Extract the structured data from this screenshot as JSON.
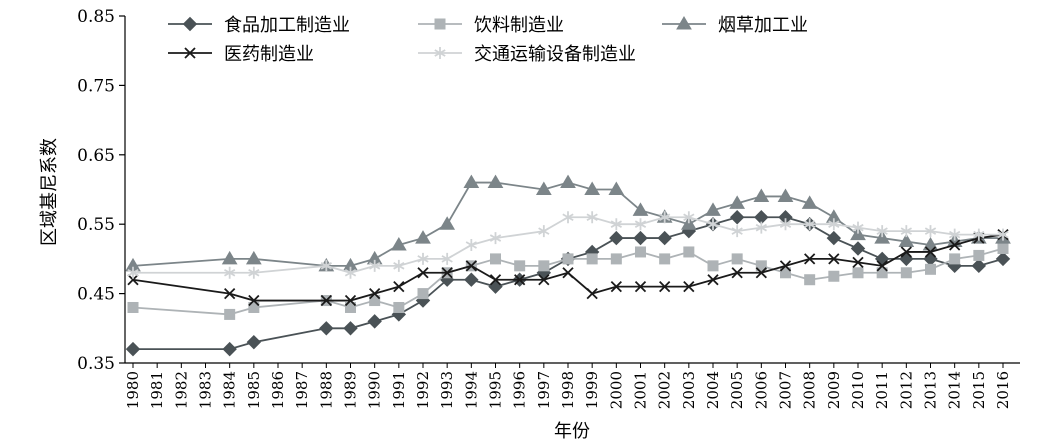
{
  "chart_data": {
    "type": "line",
    "xlabel": "年份",
    "ylabel": "区域基尼系数",
    "ylim": [
      0.35,
      0.85
    ],
    "yticks": [
      0.35,
      0.45,
      0.55,
      0.65,
      0.75,
      0.85
    ],
    "ytick_labels": [
      "0.35",
      "0.45",
      "0.55",
      "0.65",
      "0.75",
      "0.85"
    ],
    "legend_position": "top",
    "grid": false,
    "categories": [
      "1980",
      "1981",
      "1982",
      "1983",
      "1984",
      "1985",
      "1986",
      "1987",
      "1988",
      "1989",
      "1990",
      "1991",
      "1992",
      "1993",
      "1994",
      "1995",
      "1996",
      "1997",
      "1998",
      "1999",
      "2000",
      "2001",
      "2002",
      "2003",
      "2004",
      "2005",
      "2006",
      "2007",
      "2008",
      "2009",
      "2010",
      "2011",
      "2012",
      "2013",
      "2014",
      "2015",
      "2016"
    ],
    "series": [
      {
        "name": "食品加工制造业",
        "marker": "diamond",
        "color": "#4a5256",
        "values": [
          0.37,
          null,
          null,
          null,
          0.37,
          0.38,
          null,
          null,
          0.4,
          0.4,
          0.41,
          0.42,
          0.44,
          0.47,
          0.47,
          0.46,
          0.47,
          0.48,
          0.5,
          0.51,
          0.53,
          0.53,
          0.53,
          0.54,
          0.55,
          0.56,
          0.56,
          0.56,
          0.55,
          0.53,
          0.515,
          0.5,
          0.5,
          0.5,
          0.49,
          0.49,
          0.5
        ]
      },
      {
        "name": "饮料制造业",
        "marker": "square",
        "color": "#aeb3b6",
        "values": [
          0.43,
          null,
          null,
          null,
          0.42,
          0.43,
          null,
          null,
          0.44,
          0.43,
          0.44,
          0.43,
          0.45,
          0.48,
          0.49,
          0.5,
          0.49,
          0.49,
          0.5,
          0.5,
          0.5,
          0.51,
          0.5,
          0.51,
          0.49,
          0.5,
          0.49,
          0.48,
          0.47,
          0.475,
          0.48,
          0.48,
          0.48,
          0.485,
          0.5,
          0.505,
          0.515
        ]
      },
      {
        "name": "烟草加工业",
        "marker": "triangle",
        "color": "#7c8589",
        "values": [
          0.49,
          null,
          null,
          null,
          0.5,
          0.5,
          null,
          null,
          0.49,
          0.49,
          0.5,
          0.52,
          0.53,
          0.55,
          0.61,
          0.61,
          null,
          0.6,
          0.61,
          0.6,
          0.6,
          0.57,
          0.56,
          0.55,
          0.57,
          0.58,
          0.59,
          0.59,
          0.58,
          0.56,
          0.535,
          0.53,
          0.525,
          0.52,
          0.525,
          0.53,
          0.53
        ]
      },
      {
        "name": "医药制造业",
        "marker": "x",
        "color": "#1a1a1a",
        "values": [
          0.47,
          null,
          null,
          null,
          0.45,
          0.44,
          null,
          null,
          0.44,
          0.44,
          0.45,
          0.46,
          0.48,
          0.48,
          0.49,
          0.47,
          0.47,
          0.47,
          0.48,
          0.45,
          0.46,
          0.46,
          0.46,
          0.46,
          0.47,
          0.48,
          0.48,
          0.49,
          0.5,
          0.5,
          0.495,
          0.49,
          0.51,
          0.51,
          0.52,
          0.53,
          0.535
        ]
      },
      {
        "name": "交通运输设备制造业",
        "marker": "star",
        "color": "#d0d3d5",
        "values": [
          0.48,
          null,
          null,
          null,
          0.48,
          0.48,
          null,
          null,
          0.49,
          0.48,
          0.49,
          0.49,
          0.5,
          0.5,
          0.52,
          0.53,
          null,
          0.54,
          0.56,
          0.56,
          0.55,
          0.55,
          0.56,
          0.56,
          0.55,
          0.54,
          0.545,
          0.55,
          0.55,
          0.55,
          0.545,
          0.54,
          0.54,
          0.54,
          0.535,
          0.535,
          0.535
        ]
      }
    ]
  }
}
